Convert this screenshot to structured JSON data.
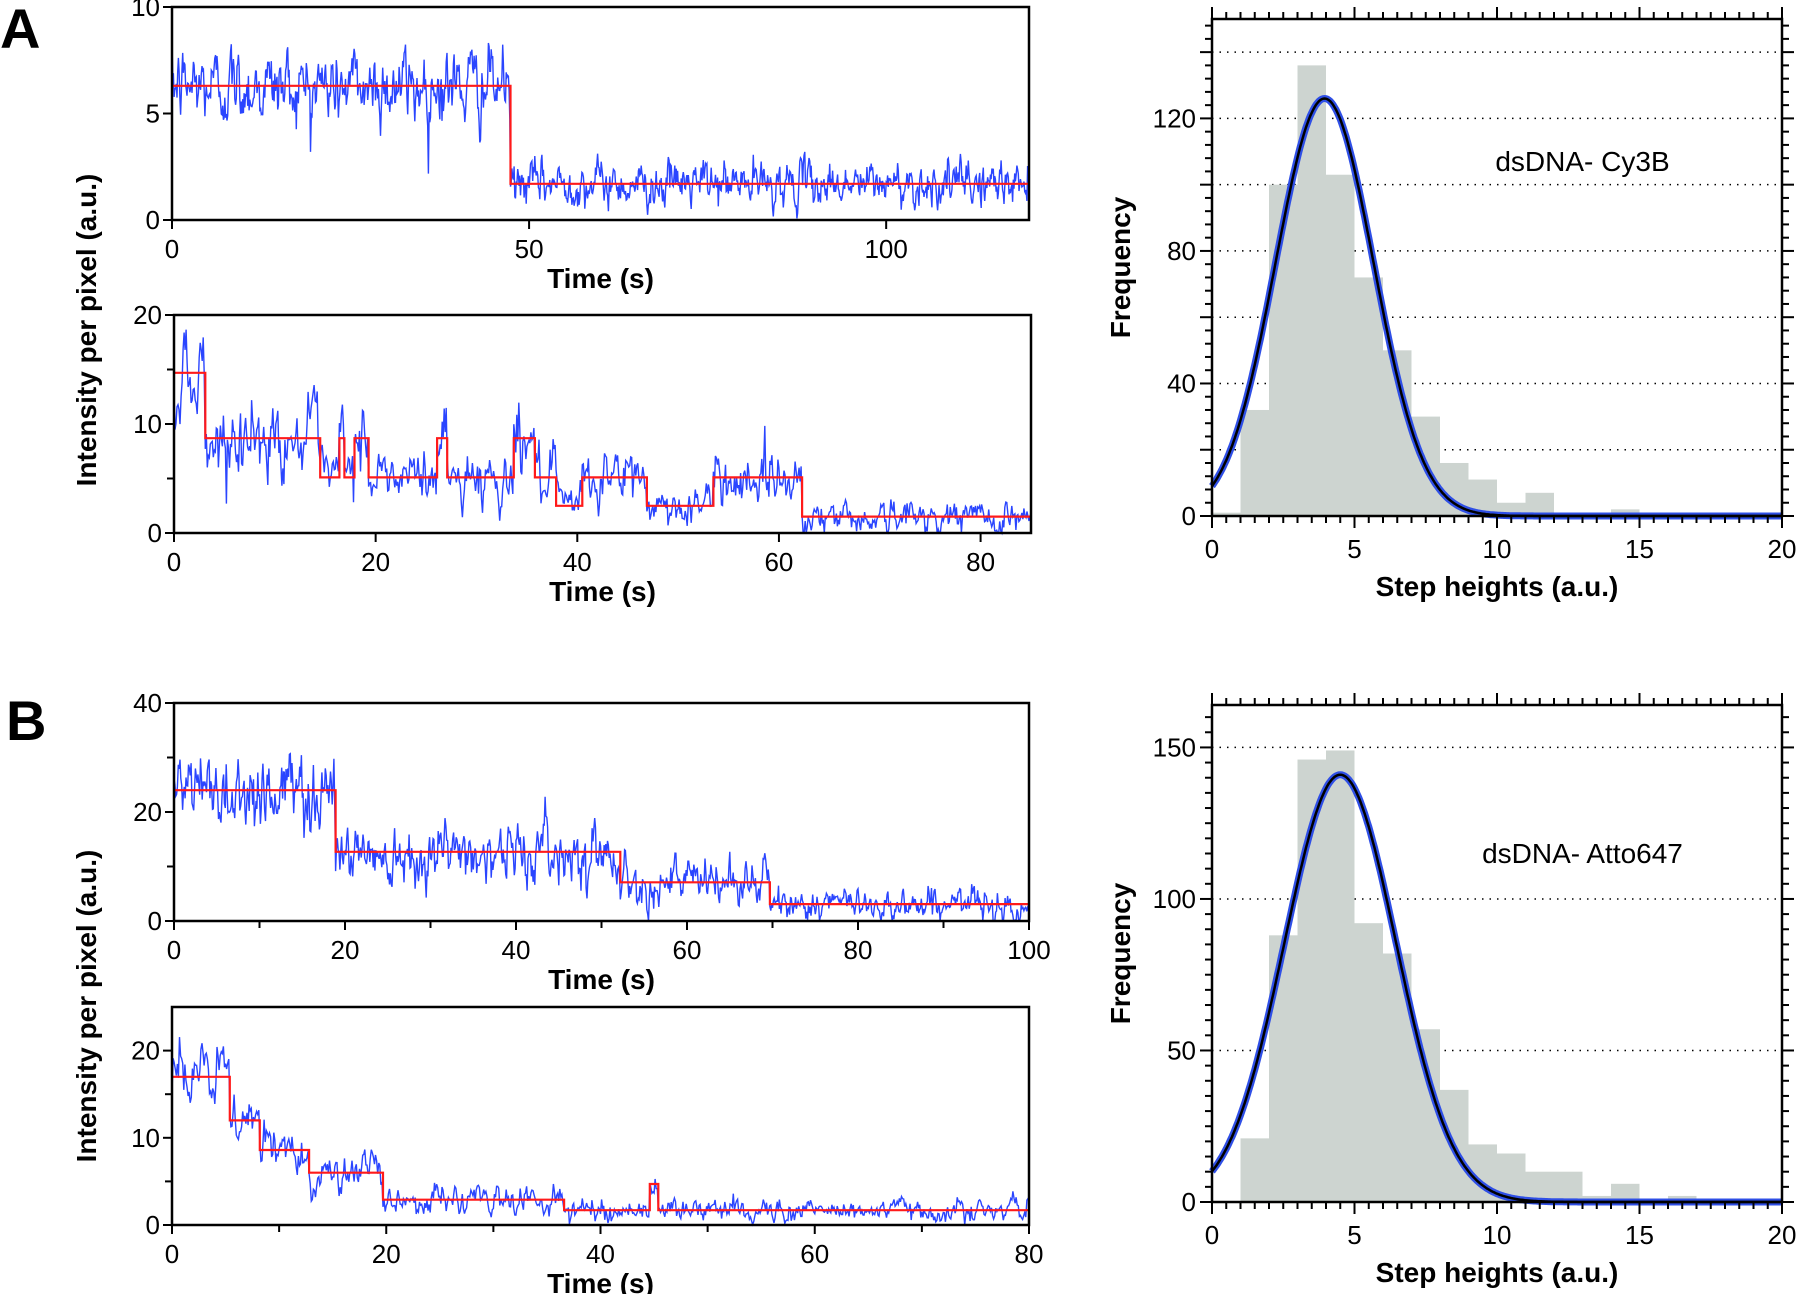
{
  "panels": [
    {
      "label": "A",
      "trace_ylabel": "Intensity per pixel (a.u.)"
    },
    {
      "label": "B",
      "trace_ylabel": "Intensity per pixel (a.u.)"
    }
  ],
  "colors": {
    "trace": "#2a45ff",
    "step_fit": "#ff1a1a",
    "histogram_bar": "#cdd4d0",
    "fit_outer": "#2f4fe6",
    "fit_inner": "#000000"
  },
  "chart_data": [
    {
      "type": "line",
      "panel": "A",
      "xlabel": "Time (s)",
      "ylabel": "",
      "xlim": [
        0,
        120
      ],
      "ylim": [
        0,
        10
      ],
      "xticks": [
        0,
        50,
        100
      ],
      "yticks": [
        0,
        5,
        10
      ],
      "series": [
        {
          "kind": "step-fit",
          "segments": [
            [
              0,
              47.4,
              6.3
            ],
            [
              47.4,
              120,
              1.7
            ]
          ]
        }
      ]
    },
    {
      "type": "line",
      "panel": "A",
      "xlabel": "Time (s)",
      "ylabel": "",
      "xlim": [
        0,
        85
      ],
      "ylim": [
        0,
        20
      ],
      "xticks": [
        0,
        20,
        40,
        60,
        80
      ],
      "yticks": [
        0,
        10,
        20
      ],
      "yminor": [
        5,
        15
      ],
      "series": [
        {
          "kind": "step-fit",
          "segments": [
            [
              0,
              3.1,
              14.7
            ],
            [
              3.1,
              14.5,
              8.7
            ],
            [
              14.5,
              16.4,
              5.1
            ],
            [
              16.4,
              16.9,
              8.7
            ],
            [
              16.9,
              17.9,
              5.1
            ],
            [
              17.9,
              19.3,
              8.7
            ],
            [
              19.3,
              26.1,
              5.1
            ],
            [
              26.1,
              27.1,
              8.7
            ],
            [
              27.1,
              33.7,
              5.1
            ],
            [
              33.7,
              35.8,
              8.7
            ],
            [
              35.8,
              37.9,
              5.1
            ],
            [
              37.9,
              40.5,
              2.5
            ],
            [
              40.5,
              46.9,
              5.1
            ],
            [
              46.9,
              53.5,
              2.5
            ],
            [
              53.5,
              62.3,
              5.1
            ],
            [
              62.3,
              85,
              1.5
            ]
          ]
        }
      ]
    },
    {
      "type": "bar",
      "panel": "A",
      "xlabel": "Step heights (a.u.)",
      "ylabel": "Frequency",
      "xlim": [
        0,
        20
      ],
      "ylim": [
        0,
        150
      ],
      "xticks": [
        0,
        5,
        10,
        15,
        20
      ],
      "yticks": [
        0,
        40,
        80,
        120
      ],
      "gridlines": [
        20,
        40,
        60,
        80,
        100,
        120,
        140
      ],
      "grid": "dotted-horizontal",
      "annotation": "dsDNA- Cy3B",
      "bin_width": 1,
      "bins": [
        0,
        1,
        2,
        3,
        4,
        5,
        6,
        7,
        8,
        9,
        10,
        11,
        12,
        13,
        14
      ],
      "values": [
        1,
        32,
        100,
        136,
        103,
        72,
        50,
        30,
        16,
        11,
        4,
        7,
        0,
        0,
        2
      ],
      "fit": {
        "type": "gaussian",
        "amplitude": 126,
        "mean": 3.95,
        "sigma": 1.72
      }
    },
    {
      "type": "line",
      "panel": "B",
      "xlabel": "Time (s)",
      "ylabel": "",
      "xlim": [
        0,
        100
      ],
      "ylim": [
        0,
        40
      ],
      "xticks": [
        0,
        20,
        40,
        60,
        80,
        100
      ],
      "xminor": [
        10,
        30,
        50,
        70,
        90
      ],
      "yticks": [
        0,
        20,
        40
      ],
      "yminor": [
        10,
        30
      ],
      "series": [
        {
          "kind": "step-fit",
          "segments": [
            [
              0,
              18.9,
              24.0
            ],
            [
              18.9,
              52.2,
              12.7
            ],
            [
              52.2,
              69.7,
              7.1
            ],
            [
              69.7,
              100,
              3.1
            ]
          ]
        }
      ]
    },
    {
      "type": "line",
      "panel": "B",
      "xlabel": "Time (s)",
      "ylabel": "",
      "xlim": [
        0,
        80
      ],
      "ylim": [
        0,
        25
      ],
      "xticks": [
        0,
        20,
        40,
        60,
        80
      ],
      "xminor": [
        10,
        30,
        50,
        70
      ],
      "yticks": [
        0,
        10,
        20
      ],
      "yminor": [
        5,
        15
      ],
      "series": [
        {
          "kind": "step-fit",
          "segments": [
            [
              0,
              5.4,
              17.0
            ],
            [
              5.4,
              8.2,
              12.0
            ],
            [
              8.2,
              12.8,
              8.6
            ],
            [
              12.8,
              19.7,
              6.0
            ],
            [
              19.7,
              36.6,
              2.9
            ],
            [
              36.6,
              44.6,
              1.7
            ],
            [
              44.6,
              45.4,
              4.7
            ],
            [
              45.4,
              80,
              1.7
            ]
          ]
        }
      ]
    },
    {
      "type": "bar",
      "panel": "B",
      "xlabel": "Step heights (a.u.)",
      "ylabel": "Frequency",
      "xlim": [
        0,
        20
      ],
      "ylim": [
        0,
        164
      ],
      "xticks": [
        0,
        5,
        10,
        15,
        20
      ],
      "yticks": [
        0,
        50,
        100,
        150
      ],
      "gridlines": [
        50,
        100,
        150
      ],
      "grid": "dotted-horizontal",
      "annotation": "dsDNA- Atto647",
      "bin_width": 1,
      "bins": [
        1,
        2,
        3,
        4,
        5,
        6,
        7,
        8,
        9,
        10,
        11,
        12,
        13,
        14,
        15,
        16
      ],
      "values": [
        21,
        88,
        146,
        149,
        92,
        82,
        57,
        37,
        19,
        16,
        10,
        10,
        2,
        6,
        0,
        2
      ],
      "fit": {
        "type": "gaussian",
        "amplitude": 141,
        "mean": 4.5,
        "sigma": 1.96
      }
    }
  ]
}
